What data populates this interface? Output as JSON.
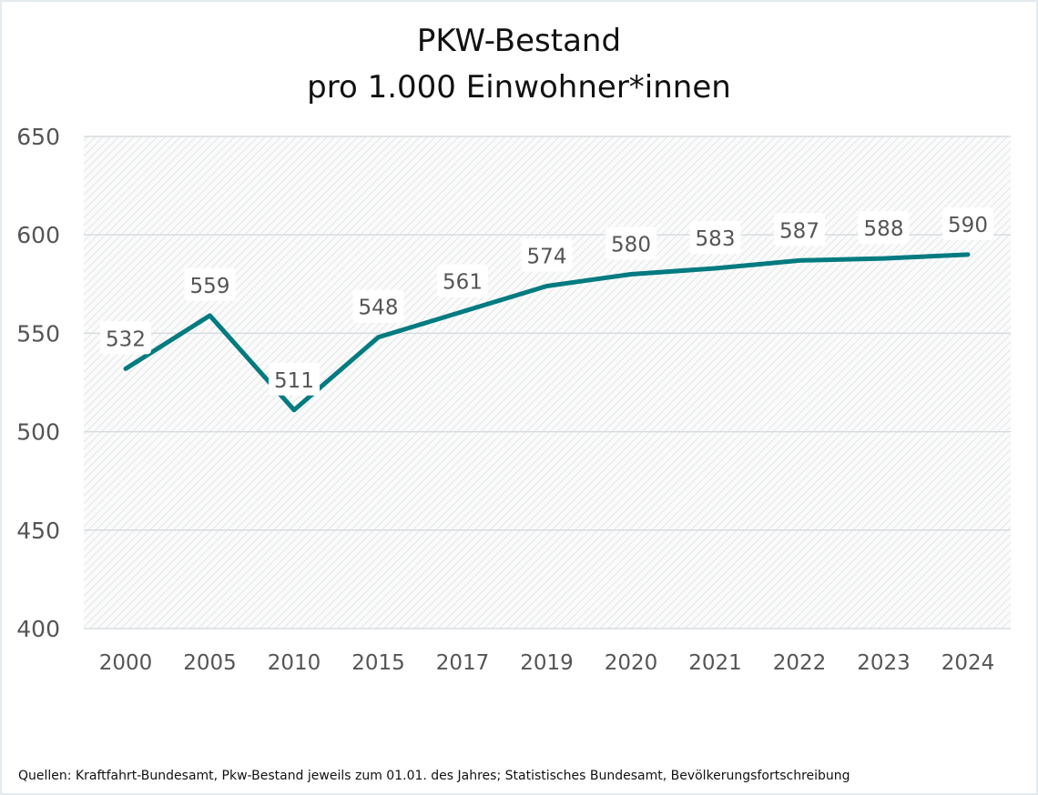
{
  "chart_data": {
    "type": "line",
    "title": "PKW-Bestand",
    "subtitle": "pro 1.000 Einwohner*innen",
    "categories": [
      "2000",
      "2005",
      "2010",
      "2015",
      "2017",
      "2019",
      "2020",
      "2021",
      "2022",
      "2023",
      "2024"
    ],
    "values": [
      532,
      559,
      511,
      548,
      561,
      574,
      580,
      583,
      587,
      588,
      590
    ],
    "ylim": [
      400,
      650
    ],
    "yticks": [
      400,
      450,
      500,
      550,
      600,
      650
    ],
    "grid": true,
    "line_color": "#027b80",
    "source": "Quellen: Kraftfahrt-Bundesamt, Pkw-Bestand jeweils zum 01.01. des Jahres; Statistisches Bundesamt, Bevölkerungsfortschreibung"
  }
}
